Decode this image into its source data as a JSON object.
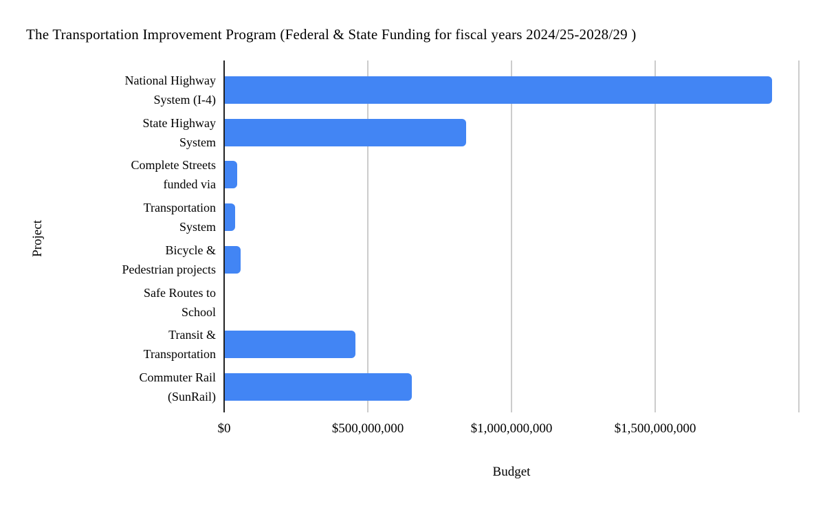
{
  "chart_data": {
    "type": "bar",
    "orientation": "horizontal",
    "title": "The Transportation Improvement Program (Federal & State Funding for fiscal years 2024/25-2028/29 )",
    "xlabel": "Budget",
    "ylabel": "Project",
    "categories": [
      "National Highway System (I-4)",
      "State Highway System",
      "Complete Streets funded via",
      "Transportation System",
      "Bicycle & Pedestrian projects",
      "Safe Routes to School",
      "Transit & Transportation",
      "Commuter Rail (SunRail)"
    ],
    "category_label_lines": [
      [
        "National Highway",
        "System (I-4)"
      ],
      [
        "State Highway",
        "System"
      ],
      [
        "Complete Streets",
        "funded via"
      ],
      [
        "Transportation",
        "System"
      ],
      [
        "Bicycle &",
        "Pedestrian projects"
      ],
      [
        "Safe Routes to",
        "School"
      ],
      [
        "Transit &",
        "Transportation"
      ],
      [
        "Commuter Rail",
        "(SunRail)"
      ]
    ],
    "values": [
      1905000000,
      840000000,
      43000000,
      36000000,
      55000000,
      0,
      455000000,
      650000000
    ],
    "xlim": [
      0,
      2000000000
    ],
    "x_ticks": [
      {
        "value": 0,
        "label": "$0"
      },
      {
        "value": 500000000,
        "label": "$500,000,000"
      },
      {
        "value": 1000000000,
        "label": "$1,000,000,000"
      },
      {
        "value": 1500000000,
        "label": "$1,500,000,000"
      },
      {
        "value": 2000000000,
        "label": ""
      }
    ],
    "grid": true,
    "legend": "none",
    "bar_color": "#4285f4",
    "gridline_color": "#cccccc",
    "axis_line_color": "#212121",
    "text_color": "#000000",
    "background_color": "#ffffff"
  }
}
